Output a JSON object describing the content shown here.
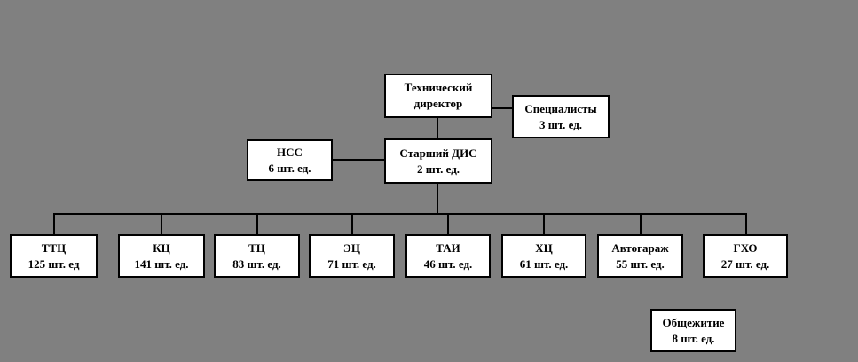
{
  "background": "#808080",
  "colors": {
    "box_fill": "#ffffff",
    "box_border": "#000000",
    "text": "#000000",
    "line": "#000000"
  },
  "nodes": {
    "tech_director": {
      "title": "Технический директор"
    },
    "specialists": {
      "title": "Специалисты",
      "count": "3 шт. ед."
    },
    "nss": {
      "title": "НСС",
      "count": "6 шт. ед."
    },
    "senior_dis": {
      "title": "Старший ДИС",
      "count": "2 шт. ед."
    }
  },
  "departments": [
    {
      "name": "ТТЦ",
      "count": "125 шт. ед"
    },
    {
      "name": "КЦ",
      "count": "141 шт. ед."
    },
    {
      "name": "ТЦ",
      "count": "83 шт. ед."
    },
    {
      "name": "ЭЦ",
      "count": "71 шт. ед."
    },
    {
      "name": "ТАИ",
      "count": "46 шт. ед."
    },
    {
      "name": "ХЦ",
      "count": "61 шт. ед."
    },
    {
      "name": "Автогараж",
      "count": "55 шт. ед."
    },
    {
      "name": "ГХО",
      "count": "27 шт. ед."
    }
  ],
  "dormitory": {
    "title": "Общежитие",
    "count": "8 шт. ед."
  }
}
